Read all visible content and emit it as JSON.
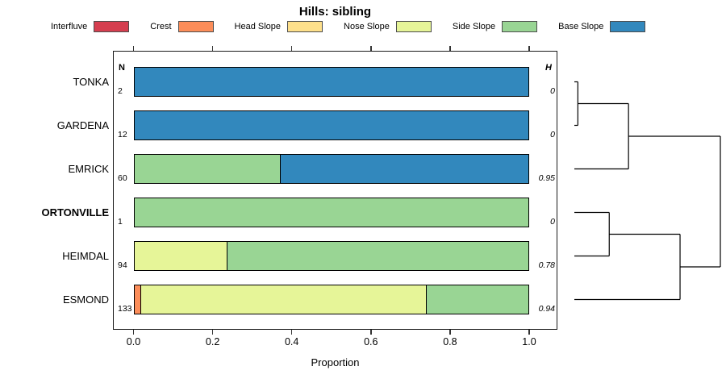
{
  "title": "Hills: sibling",
  "legend": {
    "items": [
      {
        "label": "Interfluve",
        "color": "#d53e4f"
      },
      {
        "label": "Crest",
        "color": "#fc8d59"
      },
      {
        "label": "Head Slope",
        "color": "#fee08b"
      },
      {
        "label": "Nose Slope",
        "color": "#e6f598"
      },
      {
        "label": "Side Slope",
        "color": "#99d594"
      },
      {
        "label": "Base Slope",
        "color": "#3288bd"
      }
    ]
  },
  "columns": {
    "n_header": "N",
    "h_header": "H"
  },
  "axis": {
    "label": "Proportion",
    "ticks": [
      "0.0",
      "0.2",
      "0.4",
      "0.6",
      "0.8",
      "1.0"
    ],
    "min": 0,
    "max": 1
  },
  "chart_data": {
    "type": "bar",
    "orientation": "horizontal-stacked",
    "title": "Hills: sibling",
    "xlabel": "Proportion",
    "xlim": [
      0,
      1
    ],
    "grid": false,
    "legend_position": "top",
    "categories": [
      "Interfluve",
      "Crest",
      "Head Slope",
      "Nose Slope",
      "Side Slope",
      "Base Slope"
    ],
    "colors": {
      "Interfluve": "#d53e4f",
      "Crest": "#fc8d59",
      "Head Slope": "#fee08b",
      "Nose Slope": "#e6f598",
      "Side Slope": "#99d594",
      "Base Slope": "#3288bd"
    },
    "rows": [
      {
        "label": "TONKA",
        "bold": false,
        "n": "2",
        "h": "0",
        "segments": [
          {
            "category": "Base Slope",
            "value": 1.0
          }
        ]
      },
      {
        "label": "GARDENA",
        "bold": false,
        "n": "12",
        "h": "0",
        "segments": [
          {
            "category": "Base Slope",
            "value": 1.0
          }
        ]
      },
      {
        "label": "EMRICK",
        "bold": false,
        "n": "60",
        "h": "0.95",
        "segments": [
          {
            "category": "Side Slope",
            "value": 0.37
          },
          {
            "category": "Base Slope",
            "value": 0.63
          }
        ]
      },
      {
        "label": "ORTONVILLE",
        "bold": true,
        "n": "1",
        "h": "0",
        "segments": [
          {
            "category": "Side Slope",
            "value": 1.0
          }
        ]
      },
      {
        "label": "HEIMDAL",
        "bold": false,
        "n": "94",
        "h": "0.78",
        "segments": [
          {
            "category": "Nose Slope",
            "value": 0.235
          },
          {
            "category": "Side Slope",
            "value": 0.765
          }
        ]
      },
      {
        "label": "ESMOND",
        "bold": false,
        "n": "133",
        "h": "0.94",
        "segments": [
          {
            "category": "Crest",
            "value": 0.015
          },
          {
            "category": "Nose Slope",
            "value": 0.725
          },
          {
            "category": "Side Slope",
            "value": 0.26
          }
        ]
      }
    ],
    "dendrogram": {
      "max_height": 1.0,
      "tree": {
        "height": 1.0,
        "children": [
          {
            "height": 0.371,
            "children": [
              {
                "height": 0.024,
                "children": [
                  {
                    "leaf": "TONKA"
                  },
                  {
                    "leaf": "GARDENA"
                  }
                ]
              },
              {
                "leaf": "EMRICK"
              }
            ]
          },
          {
            "height": 0.724,
            "children": [
              {
                "height": 0.239,
                "children": [
                  {
                    "leaf": "ORTONVILLE"
                  },
                  {
                    "leaf": "HEIMDAL"
                  }
                ]
              },
              {
                "leaf": "ESMOND"
              }
            ]
          }
        ]
      }
    }
  }
}
